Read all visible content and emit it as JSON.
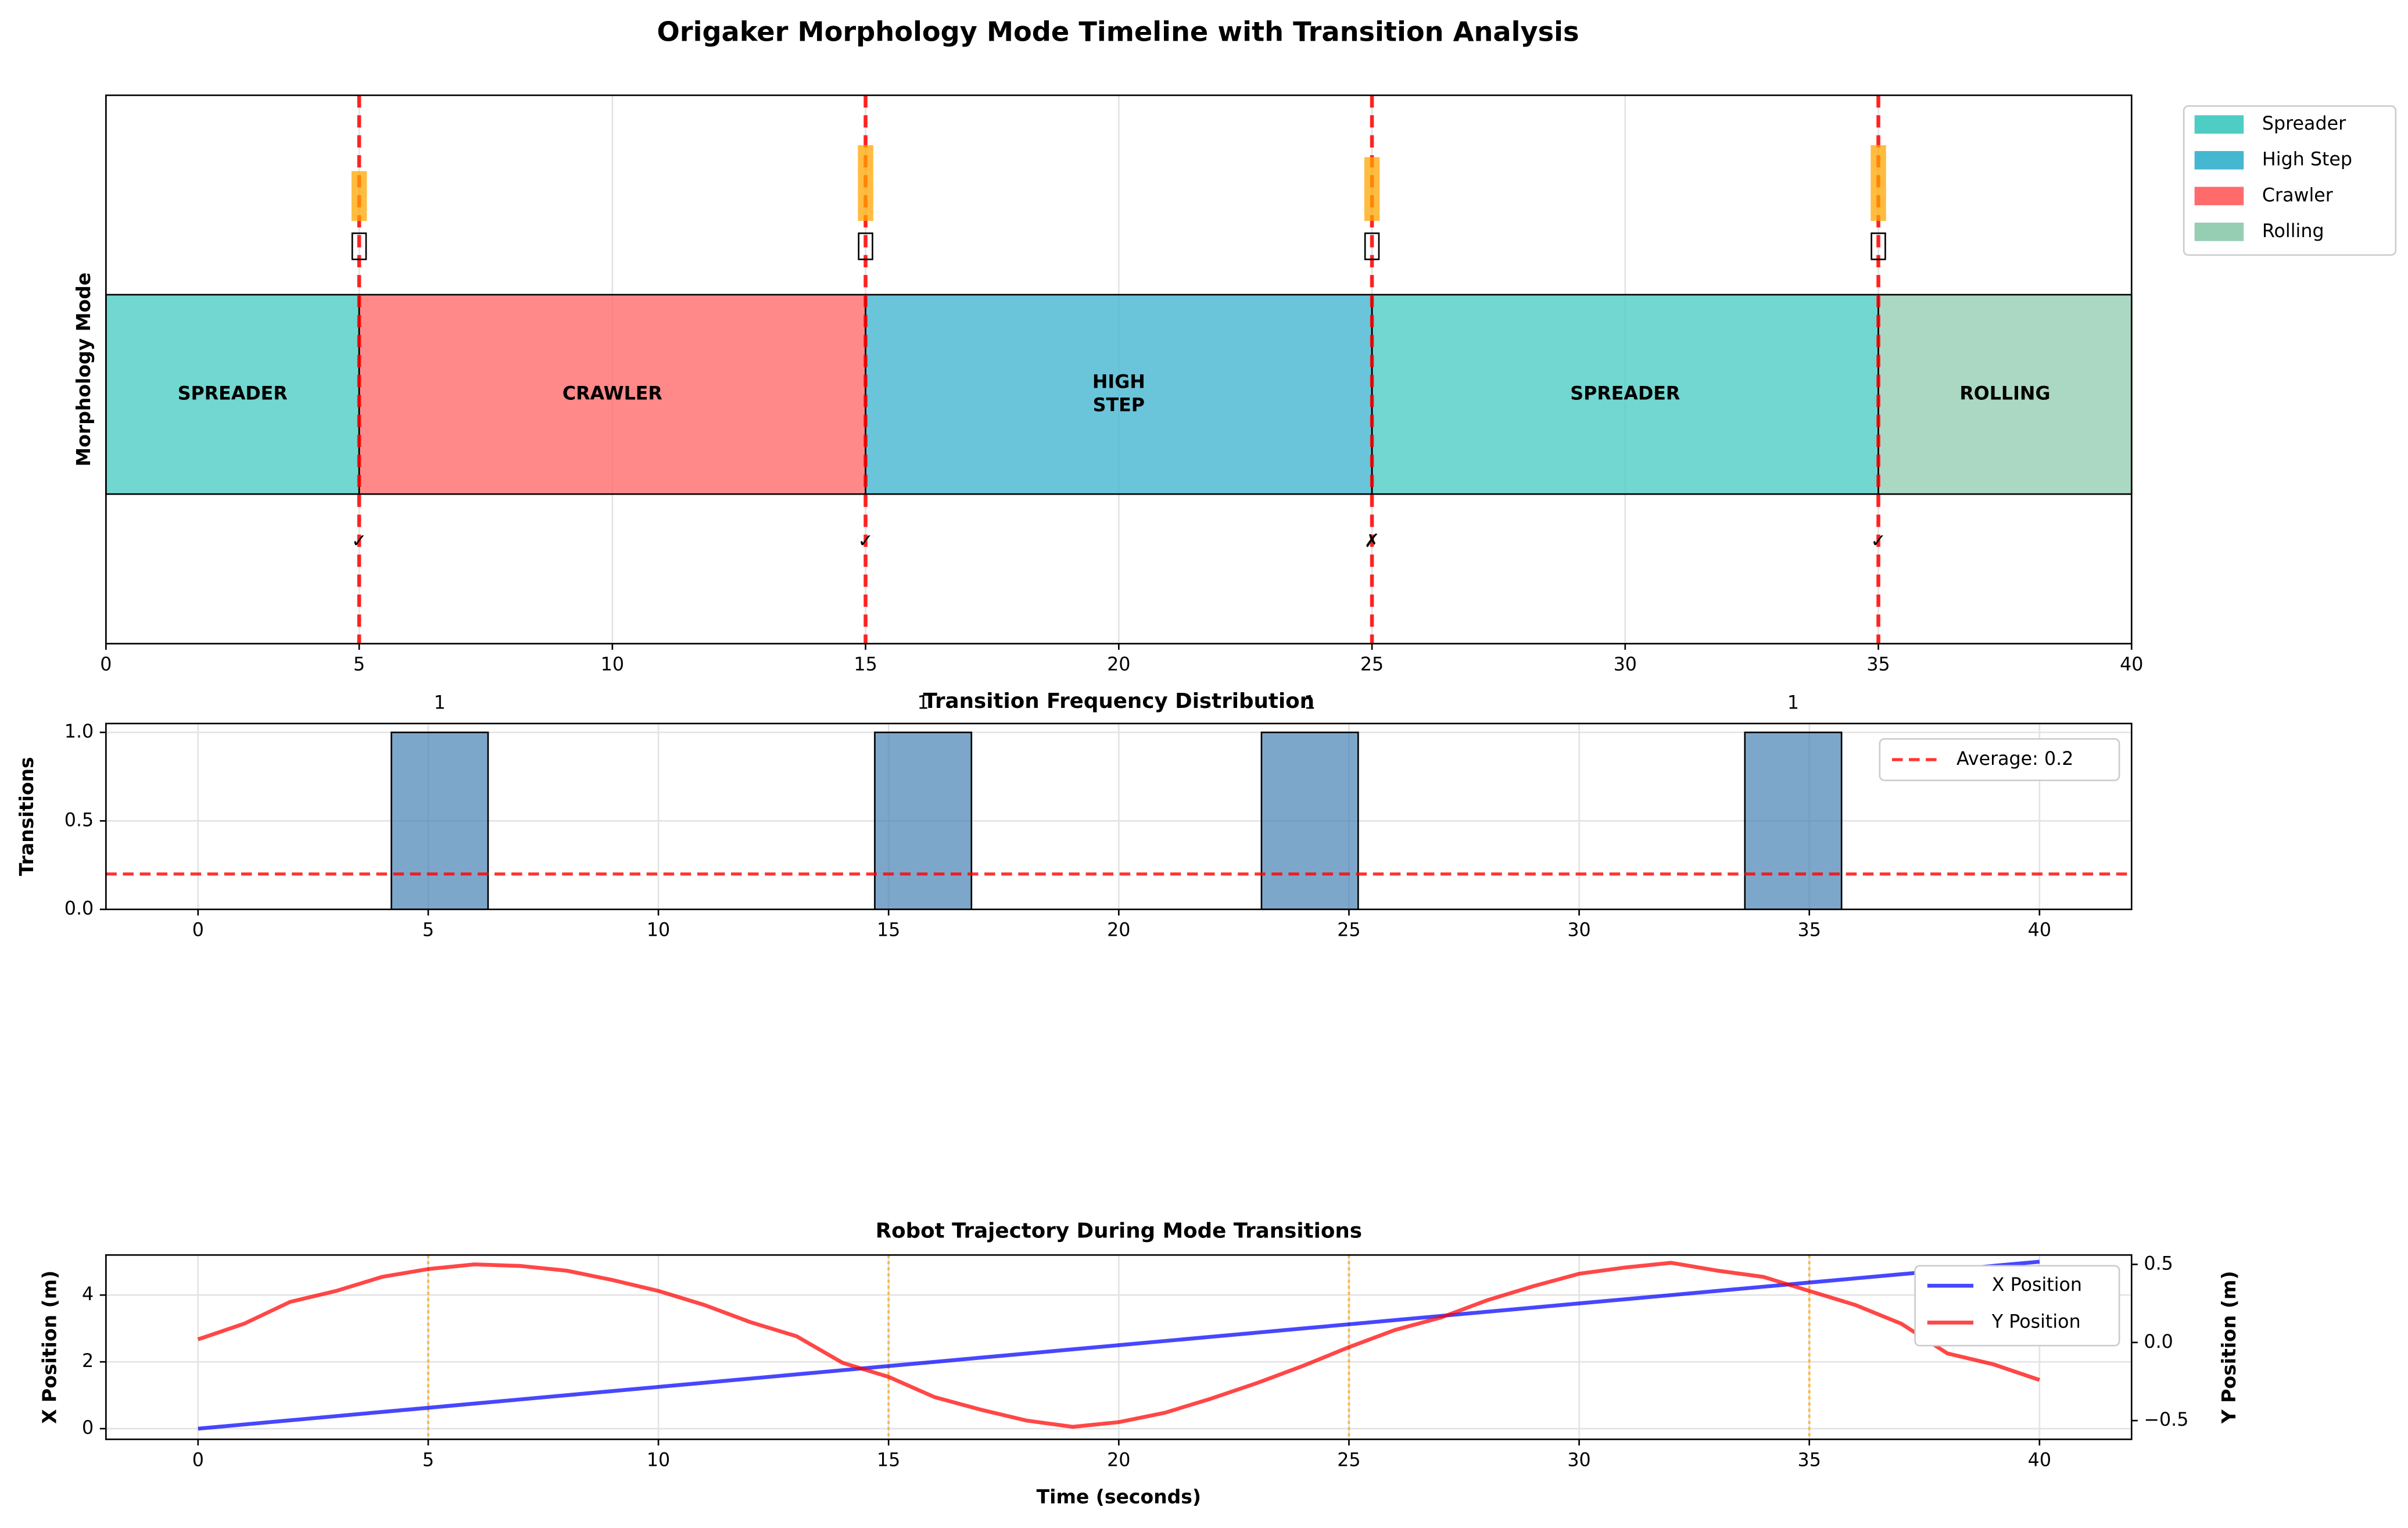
{
  "title": "Origaker Morphology Mode Timeline with Transition Analysis",
  "chart_data": [
    {
      "type": "timeline",
      "ylabel": "Morphology Mode",
      "xlim": [
        0,
        40
      ],
      "xticks": [
        0,
        5,
        10,
        15,
        20,
        25,
        30,
        35,
        40
      ],
      "ylim": [
        -0.75,
        2.0
      ],
      "grid": true,
      "series": [
        {
          "name": "Spreader",
          "color": "#4ecdc4"
        },
        {
          "name": "High Step",
          "color": "#45b7d1"
        },
        {
          "name": "Crawler",
          "color": "#ff6b6b"
        },
        {
          "name": "Rolling",
          "color": "#96ceb4"
        }
      ],
      "legend": "outside upper right",
      "segments": [
        {
          "mode": "Spreader",
          "label": [
            "SPREADER"
          ],
          "start": 0,
          "end": 5
        },
        {
          "mode": "Crawler",
          "label": [
            "CRAWLER"
          ],
          "start": 5,
          "end": 15
        },
        {
          "mode": "High Step",
          "label": [
            "HIGH",
            "STEP"
          ],
          "start": 15,
          "end": 25
        },
        {
          "mode": "Spreader",
          "label": [
            "SPREADER"
          ],
          "start": 25,
          "end": 35
        },
        {
          "mode": "Rolling",
          "label": [
            "ROLLING"
          ],
          "start": 35,
          "end": 40
        }
      ],
      "transitions": {
        "times": [
          5,
          15,
          25,
          35
        ],
        "durations": [
          0.25,
          0.38,
          0.32,
          0.38
        ],
        "marks": [
          "✓",
          "✓",
          "✗",
          "✓"
        ],
        "mark_colors": [
          "#2a9d8f",
          "#2a9d8f",
          "#d62728",
          "#2a9d8f"
        ],
        "line_color": "#ff0000",
        "bar_color": "#ffa500"
      }
    },
    {
      "type": "histogram",
      "title": "Transition Frequency Distribution",
      "ylabel": "Transitions",
      "bins": [
        0,
        2.1,
        4.2,
        6.3,
        8.4,
        10.5,
        12.6,
        14.7,
        16.8,
        18.9,
        21,
        23.1,
        25.2,
        27.3,
        29.4,
        31.5,
        33.6,
        35.7,
        37.8,
        39.9,
        42
      ],
      "counts": [
        0,
        0,
        1,
        0,
        0,
        0,
        0,
        1,
        0,
        0,
        0,
        1,
        0,
        0,
        0,
        0,
        1,
        0,
        0,
        0
      ],
      "color": "#4682b4",
      "xlim": [
        -2,
        42
      ],
      "xticks": [
        0,
        5,
        10,
        15,
        20,
        25,
        30,
        35,
        40
      ],
      "ylim": [
        0,
        1.05
      ],
      "yticks": [
        {
          "value": 0,
          "label": "0.0"
        },
        {
          "value": 0.5,
          "label": "0.5"
        },
        {
          "value": 1,
          "label": "1.0"
        }
      ],
      "grid": true,
      "average": 0.2,
      "average_label": "Average: 0.2",
      "average_color": "#ff0000",
      "legend": "upper right"
    },
    {
      "type": "line",
      "title": "Robot Trajectory During Mode Transitions",
      "xlabel": "Time (seconds)",
      "ylabel": "X Position (m)",
      "y2label": "Y Position (m)",
      "x": [
        0,
        1,
        2,
        3,
        4,
        5,
        6,
        7,
        8,
        9,
        10,
        11,
        12,
        13,
        14,
        15,
        16,
        17,
        18,
        19,
        20,
        21,
        22,
        23,
        24,
        25,
        26,
        27,
        28,
        29,
        30,
        31,
        32,
        33,
        34,
        35,
        36,
        37,
        38,
        39,
        40
      ],
      "series": [
        {
          "name": "X Position",
          "color": "#0000ff",
          "axis": "y",
          "values": [
            0,
            0.125,
            0.25,
            0.375,
            0.5,
            0.625,
            0.75,
            0.875,
            1,
            1.125,
            1.25,
            1.375,
            1.5,
            1.625,
            1.75,
            1.875,
            2,
            2.125,
            2.25,
            2.375,
            2.5,
            2.625,
            2.75,
            2.875,
            3,
            3.125,
            3.25,
            3.375,
            3.5,
            3.625,
            3.75,
            3.875,
            4,
            4.125,
            4.25,
            4.375,
            4.5,
            4.625,
            4.75,
            4.875,
            5
          ]
        },
        {
          "name": "Y Position",
          "color": "#ff0000",
          "axis": "y2",
          "values": [
            0.02,
            0.12,
            0.26,
            0.33,
            0.42,
            0.47,
            0.5,
            0.49,
            0.46,
            0.4,
            0.33,
            0.24,
            0.13,
            0.04,
            -0.13,
            -0.22,
            -0.35,
            -0.43,
            -0.5,
            -0.54,
            -0.51,
            -0.45,
            -0.36,
            -0.26,
            -0.15,
            -0.03,
            0.08,
            0.16,
            0.27,
            0.36,
            0.44,
            0.48,
            0.51,
            0.46,
            0.42,
            0.33,
            0.24,
            0.12,
            -0.07,
            -0.14,
            -0.24
          ]
        }
      ],
      "xlim": [
        -2,
        42
      ],
      "xticks": [
        0,
        5,
        10,
        15,
        20,
        25,
        30,
        35,
        40
      ],
      "ylim": [
        -0.32,
        5.2
      ],
      "yticks": [
        0,
        2,
        4
      ],
      "y2lim": [
        -0.62,
        0.56
      ],
      "y2ticks": [
        {
          "value": -0.5,
          "label": "−0.5"
        },
        {
          "value": 0,
          "label": "0.0"
        },
        {
          "value": 0.5,
          "label": "0.5"
        }
      ],
      "vlines": [
        5,
        15,
        25,
        35
      ],
      "vline_color": "#ffa500",
      "grid": true,
      "legend": "upper right"
    }
  ]
}
